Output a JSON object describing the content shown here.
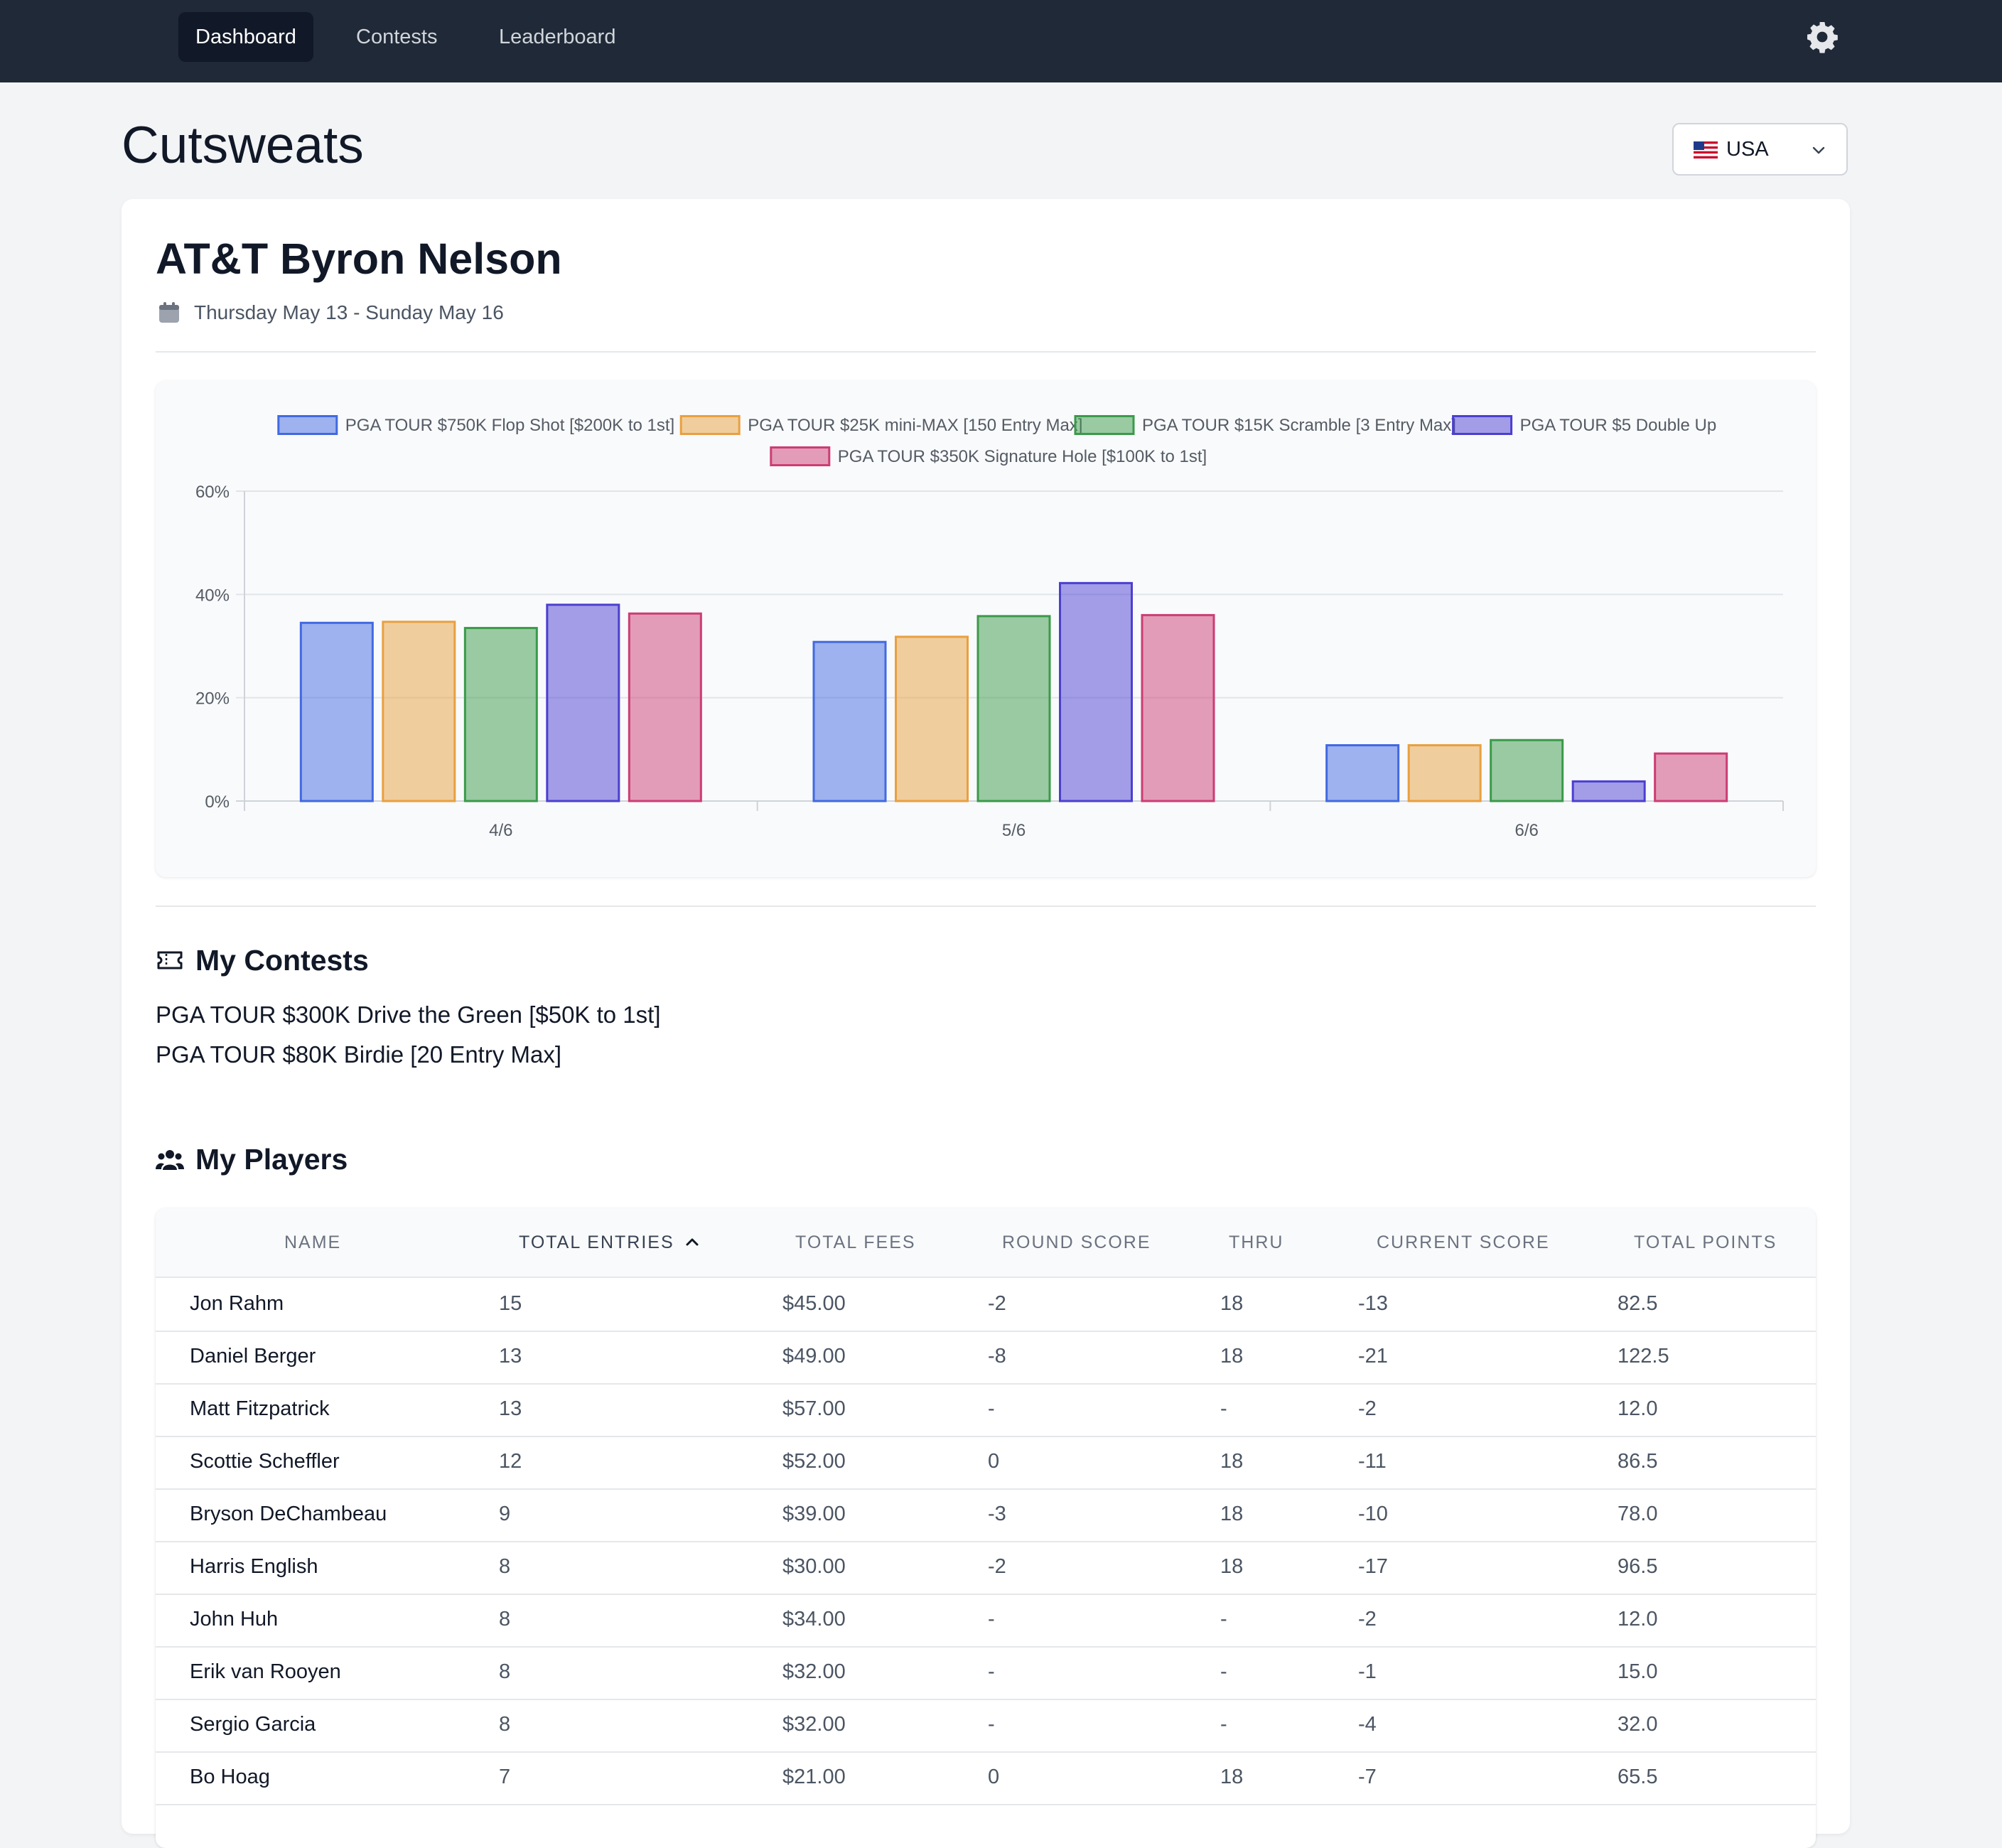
{
  "nav": {
    "items": [
      {
        "label": "Dashboard",
        "active": true
      },
      {
        "label": "Contests",
        "active": false
      },
      {
        "label": "Leaderboard",
        "active": false
      }
    ],
    "settings_icon": "gear-icon"
  },
  "header": {
    "title": "Cutsweats",
    "country": {
      "label": "USA",
      "flag_icon": "us-flag-icon"
    }
  },
  "event": {
    "title": "AT&T Byron Nelson",
    "dates": "Thursday May 13 - Sunday May 16"
  },
  "chart_data": {
    "type": "bar",
    "categories": [
      "4/6",
      "5/6",
      "6/6"
    ],
    "series": [
      {
        "name": "PGA TOUR $750K Flop Shot [$200K to 1st]",
        "color": "#4169e1",
        "values": [
          34.5,
          30.8,
          10.8
        ]
      },
      {
        "name": "PGA TOUR $25K mini-MAX [150 Entry Max]",
        "color": "#e8a040",
        "values": [
          34.7,
          31.8,
          10.8
        ]
      },
      {
        "name": "PGA TOUR $15K Scramble [3 Entry Max]",
        "color": "#3a9a4a",
        "values": [
          33.5,
          35.8,
          11.8
        ]
      },
      {
        "name": "PGA TOUR $5 Double Up",
        "color": "#4b3fd1",
        "values": [
          38.0,
          42.2,
          3.8
        ]
      },
      {
        "name": "PGA TOUR $350K Signature Hole [$100K to 1st]",
        "color": "#cc3d74",
        "values": [
          36.3,
          36.0,
          9.2
        ]
      }
    ],
    "yticks": [
      "60%",
      "40%",
      "20%",
      "0%"
    ],
    "ylim": [
      0,
      60
    ],
    "grid": true,
    "legend": "top"
  },
  "my_contests": {
    "title": "My Contests",
    "items": [
      "PGA TOUR $300K Drive the Green [$50K to 1st]",
      "PGA TOUR $80K Birdie [20 Entry Max]"
    ]
  },
  "my_players": {
    "title": "My Players",
    "columns": [
      "NAME",
      "TOTAL ENTRIES",
      "TOTAL FEES",
      "ROUND SCORE",
      "THRU",
      "CURRENT SCORE",
      "TOTAL POINTS"
    ],
    "rows": [
      [
        "Jon Rahm",
        "15",
        "$45.00",
        "-2",
        "18",
        "-13",
        "82.5"
      ],
      [
        "Daniel Berger",
        "13",
        "$49.00",
        "-8",
        "18",
        "-21",
        "122.5"
      ],
      [
        "Matt Fitzpatrick",
        "13",
        "$57.00",
        "-",
        "-",
        "-2",
        "12.0"
      ],
      [
        "Scottie Scheffler",
        "12",
        "$52.00",
        "0",
        "18",
        "-11",
        "86.5"
      ],
      [
        "Bryson DeChambeau",
        "9",
        "$39.00",
        "-3",
        "18",
        "-10",
        "78.0"
      ],
      [
        "Harris English",
        "8",
        "$30.00",
        "-2",
        "18",
        "-17",
        "96.5"
      ],
      [
        "John Huh",
        "8",
        "$34.00",
        "-",
        "-",
        "-2",
        "12.0"
      ],
      [
        "Erik van Rooyen",
        "8",
        "$32.00",
        "-",
        "-",
        "-1",
        "15.0"
      ],
      [
        "Sergio Garcia",
        "8",
        "$32.00",
        "-",
        "-",
        "-4",
        "32.0"
      ],
      [
        "Bo Hoag",
        "7",
        "$21.00",
        "0",
        "18",
        "-7",
        "65.5"
      ]
    ]
  }
}
